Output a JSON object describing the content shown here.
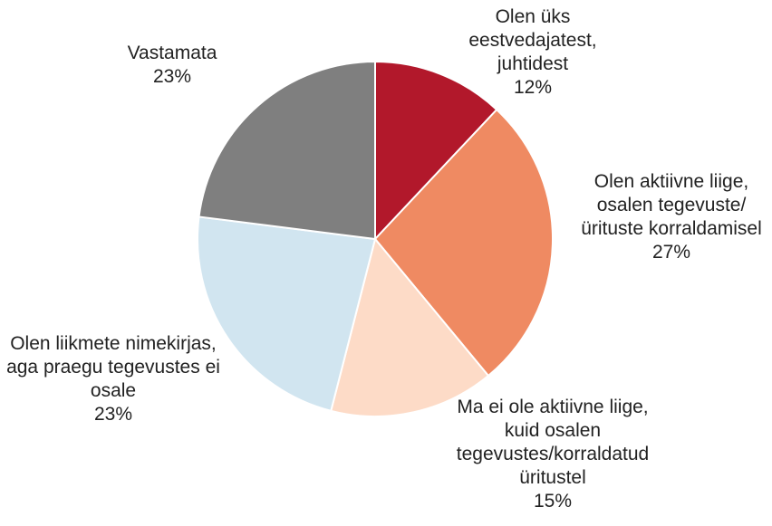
{
  "chart_data": {
    "type": "pie",
    "categories": [
      "Olen üks eestvedajatest, juhtidest",
      "Olen aktiivne liige, osalen tegevuste/ürituste korraldamisel",
      "Ma ei ole aktiivne liige, kuid osalen tegevustes/korraldatud üritustel",
      "Olen liikmete nimekirjas, aga praegu tegevustes ei osale",
      "Vastamata"
    ],
    "values": [
      12,
      27,
      15,
      23,
      23
    ],
    "value_labels": [
      "12%",
      "27%",
      "15%",
      "23%",
      "23%"
    ],
    "colors": [
      "#b2182b",
      "#ef8a62",
      "#fddbc7",
      "#d1e5f0",
      "#7f7f7f"
    ]
  }
}
